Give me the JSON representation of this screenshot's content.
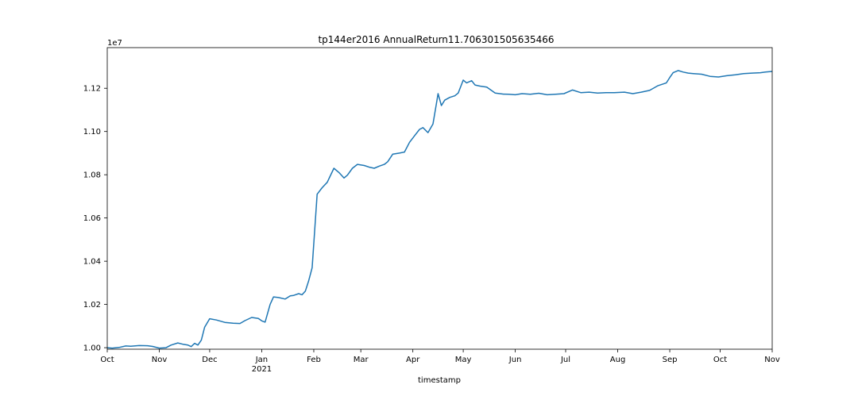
{
  "chart_data": {
    "type": "line",
    "title": "tp144er2016 AnnualReturn11.706301505635466",
    "xlabel": "timestamp",
    "ylabel": "",
    "y_scale_label": "1e7",
    "x_range": [
      "2020-10-01",
      "2021-11-01"
    ],
    "ylim": [
      9993000,
      11388000
    ],
    "grid": false,
    "x_ticks": [
      {
        "date": "2020-10-01",
        "label": "Oct"
      },
      {
        "date": "2020-11-01",
        "label": "Nov"
      },
      {
        "date": "2020-12-01",
        "label": "Dec"
      },
      {
        "date": "2021-01-01",
        "label": "Jan",
        "sublabel": "2021"
      },
      {
        "date": "2021-02-01",
        "label": "Feb"
      },
      {
        "date": "2021-03-01",
        "label": "Mar"
      },
      {
        "date": "2021-04-01",
        "label": "Apr"
      },
      {
        "date": "2021-05-01",
        "label": "May"
      },
      {
        "date": "2021-06-01",
        "label": "Jun"
      },
      {
        "date": "2021-07-01",
        "label": "Jul"
      },
      {
        "date": "2021-08-01",
        "label": "Aug"
      },
      {
        "date": "2021-09-01",
        "label": "Sep"
      },
      {
        "date": "2021-10-01",
        "label": "Oct"
      },
      {
        "date": "2021-11-01",
        "label": "Nov"
      }
    ],
    "y_ticks": [
      {
        "value": 10000000,
        "label": "1.00"
      },
      {
        "value": 10200000,
        "label": "1.02"
      },
      {
        "value": 10400000,
        "label": "1.04"
      },
      {
        "value": 10600000,
        "label": "1.06"
      },
      {
        "value": 10800000,
        "label": "1.08"
      },
      {
        "value": 11000000,
        "label": "1.10"
      },
      {
        "value": 11200000,
        "label": "1.12"
      }
    ],
    "series": [
      {
        "color": "#1f77b4",
        "x": [
          "2020-10-01",
          "2020-10-04",
          "2020-10-08",
          "2020-10-12",
          "2020-10-15",
          "2020-10-20",
          "2020-10-25",
          "2020-10-28",
          "2020-11-01",
          "2020-11-05",
          "2020-11-08",
          "2020-11-12",
          "2020-11-15",
          "2020-11-18",
          "2020-11-20",
          "2020-11-22",
          "2020-11-24",
          "2020-11-26",
          "2020-11-28",
          "2020-12-01",
          "2020-12-05",
          "2020-12-10",
          "2020-12-15",
          "2020-12-19",
          "2020-12-22",
          "2020-12-26",
          "2020-12-30",
          "2021-01-01",
          "2021-01-03",
          "2021-01-06",
          "2021-01-08",
          "2021-01-11",
          "2021-01-15",
          "2021-01-18",
          "2021-01-20",
          "2021-01-23",
          "2021-01-25",
          "2021-01-27",
          "2021-01-29",
          "2021-01-31",
          "2021-02-03",
          "2021-02-06",
          "2021-02-09",
          "2021-02-13",
          "2021-02-16",
          "2021-02-19",
          "2021-02-21",
          "2021-02-24",
          "2021-02-27",
          "2021-03-03",
          "2021-03-06",
          "2021-03-09",
          "2021-03-12",
          "2021-03-15",
          "2021-03-17",
          "2021-03-20",
          "2021-03-24",
          "2021-03-27",
          "2021-03-30",
          "2021-04-02",
          "2021-04-05",
          "2021-04-07",
          "2021-04-10",
          "2021-04-13",
          "2021-04-15",
          "2021-04-16",
          "2021-04-18",
          "2021-04-20",
          "2021-04-23",
          "2021-04-26",
          "2021-04-28",
          "2021-05-01",
          "2021-05-03",
          "2021-05-06",
          "2021-05-08",
          "2021-05-11",
          "2021-05-15",
          "2021-05-20",
          "2021-05-25",
          "2021-05-28",
          "2021-06-01",
          "2021-06-05",
          "2021-06-10",
          "2021-06-15",
          "2021-06-20",
          "2021-06-25",
          "2021-06-30",
          "2021-07-05",
          "2021-07-10",
          "2021-07-15",
          "2021-07-20",
          "2021-07-25",
          "2021-07-30",
          "2021-08-05",
          "2021-08-10",
          "2021-08-15",
          "2021-08-20",
          "2021-08-25",
          "2021-08-30",
          "2021-09-01",
          "2021-09-03",
          "2021-09-06",
          "2021-09-09",
          "2021-09-12",
          "2021-09-15",
          "2021-09-20",
          "2021-09-25",
          "2021-09-30",
          "2021-10-05",
          "2021-10-10",
          "2021-10-15",
          "2021-10-20",
          "2021-10-25",
          "2021-10-28",
          "2021-11-01"
        ],
        "y": [
          10000000,
          9998000,
          10001000,
          10008000,
          10007000,
          10010000,
          10009000,
          10006000,
          9998000,
          10000000,
          10012000,
          10022000,
          10016000,
          10012000,
          10005000,
          10020000,
          10012000,
          10035000,
          10095000,
          10134000,
          10128000,
          10117000,
          10113000,
          10112000,
          10125000,
          10140000,
          10135000,
          10124000,
          10118000,
          10200000,
          10235000,
          10232000,
          10225000,
          10240000,
          10242000,
          10250000,
          10245000,
          10262000,
          10310000,
          10370000,
          10710000,
          10740000,
          10765000,
          10830000,
          10810000,
          10785000,
          10798000,
          10830000,
          10848000,
          10843000,
          10835000,
          10830000,
          10840000,
          10848000,
          10860000,
          10895000,
          10900000,
          10905000,
          10950000,
          10980000,
          11010000,
          11018000,
          10995000,
          11035000,
          11128000,
          11175000,
          11120000,
          11145000,
          11158000,
          11165000,
          11178000,
          11238000,
          11225000,
          11235000,
          11215000,
          11210000,
          11205000,
          11178000,
          11173000,
          11172000,
          11170000,
          11175000,
          11172000,
          11177000,
          11170000,
          11172000,
          11175000,
          11192000,
          11180000,
          11182000,
          11178000,
          11180000,
          11180000,
          11182000,
          11175000,
          11182000,
          11190000,
          11212000,
          11225000,
          11250000,
          11272000,
          11282000,
          11275000,
          11270000,
          11268000,
          11265000,
          11255000,
          11252000,
          11258000,
          11262000,
          11268000,
          11270000,
          11272000,
          11275000,
          11278000
        ]
      }
    ]
  }
}
